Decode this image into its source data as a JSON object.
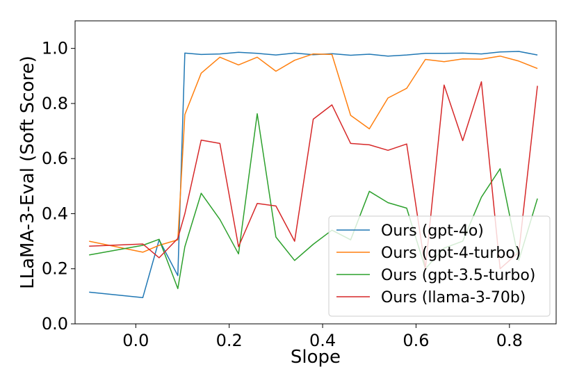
{
  "chart_data": {
    "type": "line",
    "title": "",
    "xlabel": "Slope",
    "ylabel": "LLaMA-3-Eval (Soft Score)",
    "xlim": [
      -0.13,
      0.9
    ],
    "ylim": [
      0.0,
      1.1
    ],
    "xticks": [
      0.0,
      0.2,
      0.4,
      0.6,
      0.8
    ],
    "xtick_labels": [
      "0.0",
      "0.2",
      "0.4",
      "0.6",
      "0.8"
    ],
    "yticks": [
      0.0,
      0.2,
      0.4,
      0.6,
      0.8,
      1.0
    ],
    "ytick_labels": [
      "0.0",
      "0.2",
      "0.4",
      "0.6",
      "0.8",
      "1.0"
    ],
    "grid": false,
    "legend_position": "lower-right",
    "x": [
      -0.1,
      0.015,
      0.05,
      0.09,
      0.105,
      0.14,
      0.18,
      0.22,
      0.26,
      0.3,
      0.34,
      0.38,
      0.42,
      0.46,
      0.5,
      0.54,
      0.58,
      0.62,
      0.66,
      0.7,
      0.74,
      0.78,
      0.82,
      0.86
    ],
    "series": [
      {
        "name": "Ours (gpt-4o)",
        "color": "#1f77b4",
        "values": [
          0.115,
          0.095,
          0.305,
          0.175,
          0.983,
          0.978,
          0.98,
          0.986,
          0.982,
          0.976,
          0.983,
          0.977,
          0.981,
          0.975,
          0.979,
          0.972,
          0.976,
          0.982,
          0.982,
          0.983,
          0.98,
          0.987,
          0.989,
          0.976
        ]
      },
      {
        "name": "Ours (gpt-4-turbo)",
        "color": "#ff7f0e",
        "values": [
          0.3,
          0.26,
          0.285,
          0.305,
          0.76,
          0.91,
          0.968,
          0.94,
          0.968,
          0.917,
          0.957,
          0.98,
          0.978,
          0.757,
          0.708,
          0.82,
          0.855,
          0.96,
          0.952,
          0.962,
          0.961,
          0.972,
          0.954,
          0.927
        ]
      },
      {
        "name": "Ours (gpt-3.5-turbo)",
        "color": "#2ca02c",
        "values": [
          0.25,
          0.285,
          0.307,
          0.128,
          0.28,
          0.474,
          0.379,
          0.254,
          0.763,
          0.315,
          0.23,
          0.289,
          0.34,
          0.305,
          0.481,
          0.44,
          0.42,
          0.2,
          0.275,
          0.3,
          0.46,
          0.563,
          0.23,
          0.455
        ]
      },
      {
        "name": "Ours (llama-3-70b)",
        "color": "#d62728",
        "values": [
          0.282,
          0.29,
          0.24,
          0.31,
          0.4,
          0.667,
          0.655,
          0.28,
          0.437,
          0.428,
          0.3,
          0.743,
          0.795,
          0.655,
          0.65,
          0.63,
          0.653,
          0.2,
          0.867,
          0.665,
          0.879,
          0.2,
          0.26,
          0.864
        ]
      }
    ]
  }
}
